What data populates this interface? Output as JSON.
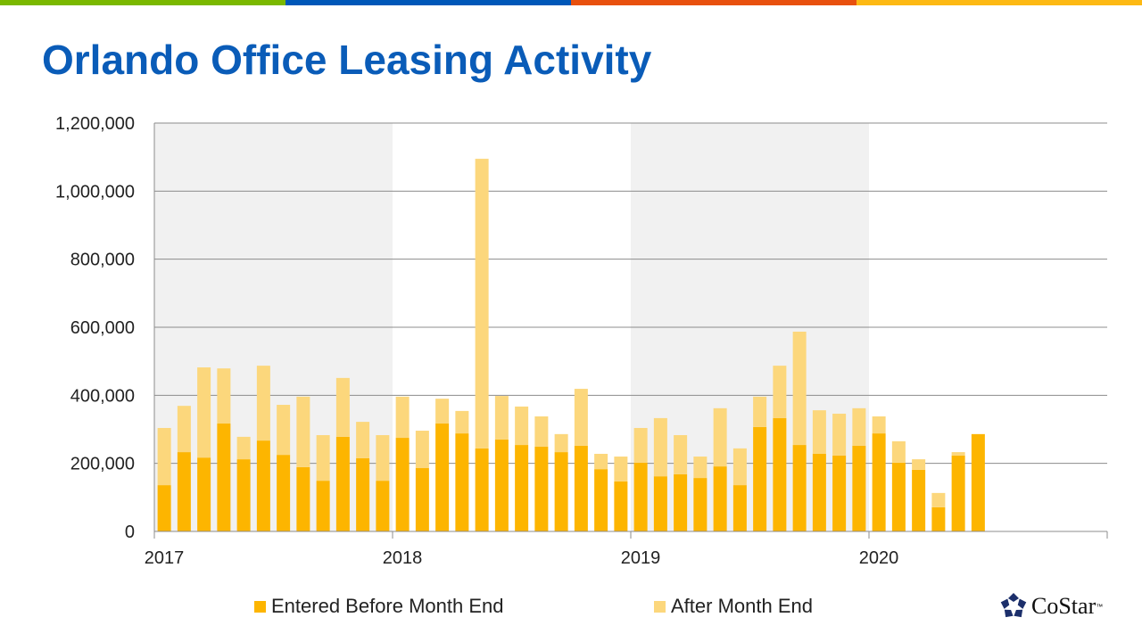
{
  "colors": {
    "stripes": [
      "#7ab800",
      "#0057b8",
      "#e8500e",
      "#fdb913"
    ],
    "title": "#0a5cb8",
    "entered": "#fdb500",
    "after": "#fcd77c",
    "band": "#f1f1f1"
  },
  "chart_data": {
    "type": "bar",
    "stacked": true,
    "title": "Orlando Office Leasing Activity",
    "xlabel": "",
    "ylabel": "",
    "ylim": [
      0,
      1200000
    ],
    "yticks": [
      "0",
      "200,000",
      "400,000",
      "600,000",
      "800,000",
      "1,000,000",
      "1,200,000"
    ],
    "xticks": [
      "2017",
      "2018",
      "2019",
      "2020"
    ],
    "xrange": [
      "2017-01",
      "2020-12"
    ],
    "shaded_years": [
      "2017",
      "2019"
    ],
    "grid": true,
    "legend_position": "bottom",
    "categories": [
      "2017-01",
      "2017-02",
      "2017-03",
      "2017-04",
      "2017-05",
      "2017-06",
      "2017-07",
      "2017-08",
      "2017-09",
      "2017-10",
      "2017-11",
      "2017-12",
      "2018-01",
      "2018-02",
      "2018-03",
      "2018-04",
      "2018-05",
      "2018-06",
      "2018-07",
      "2018-08",
      "2018-09",
      "2018-10",
      "2018-11",
      "2018-12",
      "2019-01",
      "2019-02",
      "2019-03",
      "2019-04",
      "2019-05",
      "2019-06",
      "2019-07",
      "2019-08",
      "2019-09",
      "2019-10",
      "2019-11",
      "2019-12",
      "2020-01",
      "2020-02",
      "2020-03",
      "2020-04",
      "2020-05",
      "2020-06"
    ],
    "series": [
      {
        "name": "Entered Before Month End",
        "values": [
          136000,
          233000,
          217000,
          317000,
          212000,
          267000,
          225000,
          189000,
          149000,
          278000,
          215000,
          149000,
          275000,
          186000,
          317000,
          288000,
          244000,
          270000,
          254000,
          249000,
          233000,
          252000,
          183000,
          147000,
          202000,
          162000,
          168000,
          157000,
          191000,
          136000,
          307000,
          333000,
          254000,
          228000,
          223000,
          252000,
          288000,
          202000,
          181000,
          71000,
          223000,
          286000
        ]
      },
      {
        "name": "After Month End",
        "values": [
          168000,
          136000,
          265000,
          162000,
          66000,
          220000,
          147000,
          207000,
          134000,
          173000,
          107000,
          134000,
          121000,
          110000,
          73000,
          66000,
          851000,
          128000,
          113000,
          89000,
          53000,
          167000,
          45000,
          73000,
          102000,
          171000,
          115000,
          63000,
          171000,
          108000,
          89000,
          154000,
          333000,
          128000,
          123000,
          110000,
          50000,
          63000,
          31000,
          42000,
          10000,
          0
        ]
      }
    ]
  },
  "logo": {
    "wordmark": "CoStar",
    "tm": "™"
  }
}
